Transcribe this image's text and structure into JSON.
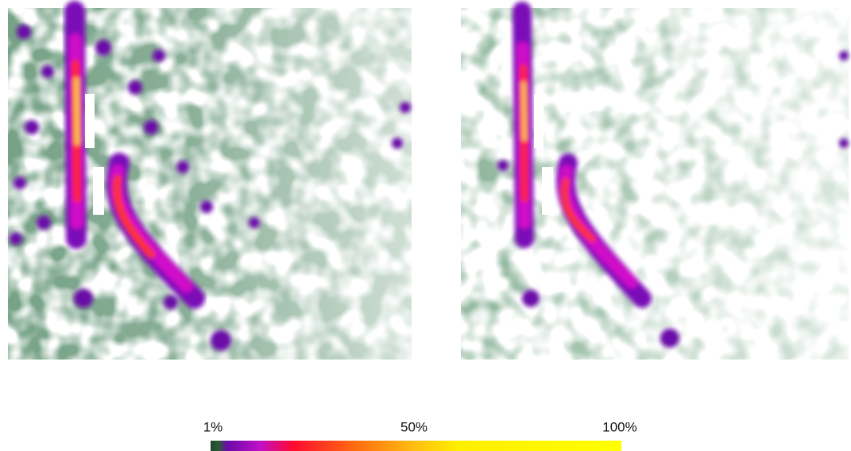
{
  "colorbar": {
    "labels": [
      "1%",
      "50%",
      "100%"
    ]
  }
}
